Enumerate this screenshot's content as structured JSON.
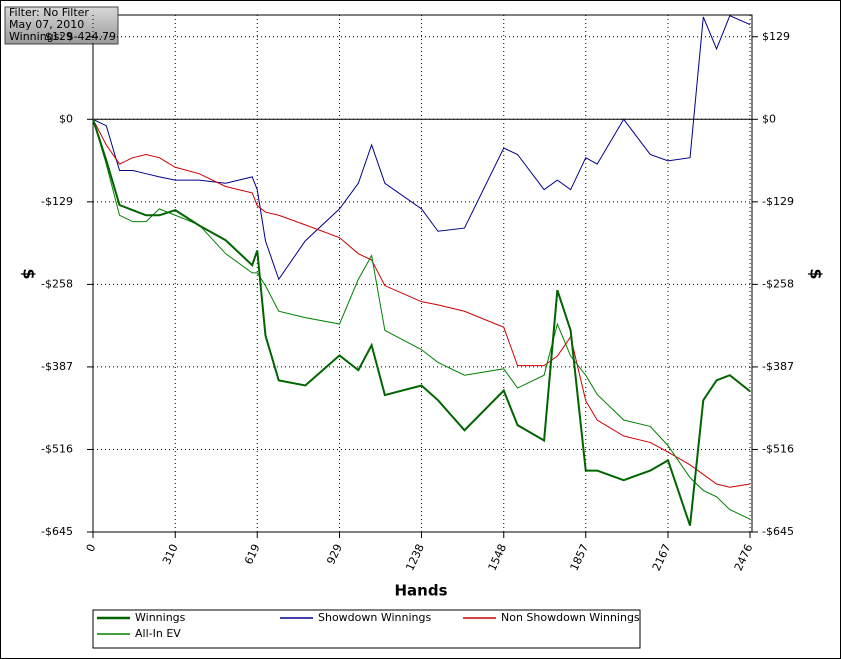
{
  "chart_data": {
    "type": "line",
    "info": [
      "Filter: No Filter",
      "May 07, 2010",
      "Winnings: $-424.79"
    ],
    "xlabel": "Hands",
    "ylabel": "$",
    "y2label": "$",
    "x": [
      0,
      50,
      100,
      150,
      200,
      250,
      310,
      400,
      500,
      600,
      619,
      650,
      700,
      800,
      929,
      1000,
      1050,
      1100,
      1238,
      1300,
      1400,
      1548,
      1600,
      1700,
      1750,
      1800,
      1857,
      1900,
      2000,
      2100,
      2167,
      2250,
      2300,
      2350,
      2400,
      2476
    ],
    "series": [
      {
        "name": "Winnings",
        "color": "#006400",
        "line_width": 2,
        "values": [
          0,
          -64,
          -134,
          -142,
          -150,
          -150,
          -142,
          -166,
          -189,
          -228,
          -205,
          -338,
          -408,
          -416,
          -369,
          -392,
          -353,
          -431,
          -416,
          -439,
          -486,
          -424,
          -478,
          -502,
          -267,
          -330,
          -549,
          -549,
          -564,
          -549,
          -533,
          -635,
          -439,
          -408,
          -400,
          -425
        ]
      },
      {
        "name": "Showdown Winnings",
        "color": "#00008b",
        "line_width": 1,
        "values": [
          0,
          -10,
          -80,
          -80,
          -85,
          -90,
          -95,
          -95,
          -100,
          -90,
          -110,
          -190,
          -250,
          -190,
          -140,
          -100,
          -40,
          -100,
          -140,
          -175,
          -170,
          -45,
          -55,
          -110,
          -95,
          -110,
          -60,
          -70,
          0,
          -55,
          -65,
          -60,
          160,
          110,
          162,
          148
        ]
      },
      {
        "name": "Non Showdown Winnings",
        "color": "#cc0000",
        "line_width": 1,
        "values": [
          0,
          -40,
          -70,
          -60,
          -55,
          -60,
          -75,
          -85,
          -105,
          -115,
          -135,
          -145,
          -150,
          -165,
          -185,
          -210,
          -220,
          -260,
          -285,
          -290,
          -300,
          -325,
          -385,
          -385,
          -370,
          -340,
          -440,
          -470,
          -495,
          -505,
          -520,
          -540,
          -555,
          -570,
          -575,
          -570
        ]
      },
      {
        "name": "All-In EV",
        "color": "#008000",
        "line_width": 1,
        "values": [
          0,
          -70,
          -150,
          -160,
          -160,
          -140,
          -150,
          -165,
          -210,
          -240,
          -240,
          -260,
          -300,
          -310,
          -320,
          -250,
          -213,
          -330,
          -360,
          -380,
          -400,
          -390,
          -420,
          -400,
          -320,
          -370,
          -400,
          -430,
          -470,
          -480,
          -510,
          -560,
          -580,
          -590,
          -610,
          -625
        ]
      }
    ],
    "xlim": [
      0,
      2476
    ],
    "xticks": [
      0,
      310,
      619,
      929,
      1238,
      1548,
      1857,
      2167,
      2476
    ],
    "ylim": [
      -645,
      163
    ],
    "yticks": [
      {
        "value": 129,
        "label": "$129"
      },
      {
        "value": 0,
        "label": "$0"
      },
      {
        "value": -129,
        "label": "-$129"
      },
      {
        "value": -258,
        "label": "-$258"
      },
      {
        "value": -387,
        "label": "-$387"
      },
      {
        "value": -516,
        "label": "-$516"
      },
      {
        "value": -645,
        "label": "-$645"
      }
    ],
    "y2lim": [
      -645,
      163
    ],
    "y2ticks": [
      {
        "value": 129,
        "label": "$129"
      },
      {
        "value": 0,
        "label": "$0"
      },
      {
        "value": -129,
        "label": "-$129"
      },
      {
        "value": -258,
        "label": "-$258"
      },
      {
        "value": -387,
        "label": "-$387"
      },
      {
        "value": -516,
        "label": "-$516"
      },
      {
        "value": -645,
        "label": "-$645"
      }
    ],
    "grid": true,
    "legend": "bottom"
  }
}
